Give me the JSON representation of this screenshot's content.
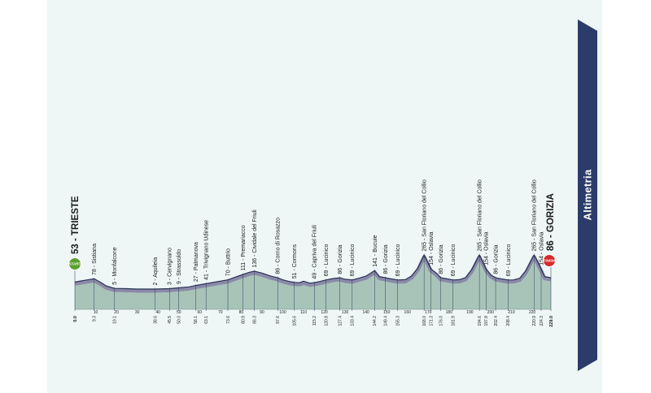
{
  "panel": {
    "title": "Altimetria",
    "start_badge": "START",
    "finish_badge": "FINISH",
    "colors": {
      "background": "#eef6f6",
      "banner": "#2b3c6b",
      "ground_fill": "#a8c3b8",
      "road_band": "#8a8aa8",
      "profile_line": "#2a3355",
      "start_badge": "#5aa02c",
      "finish_badge": "#d62b2b"
    }
  },
  "chart_data": {
    "type": "area",
    "title": "Altimetria",
    "xlabel": "",
    "ylabel": "",
    "xlim": [
      0,
      229.0
    ],
    "ylim": [
      0,
      300
    ],
    "start": {
      "km": "0.0",
      "alt": 53,
      "name": "TRIESTE"
    },
    "finish": {
      "km": "229.0",
      "alt": 86,
      "name": "GORIZIA"
    },
    "x_ticks": [
      10,
      20,
      30,
      40,
      50,
      60,
      70,
      80,
      90,
      100,
      110,
      120,
      130,
      140,
      150,
      160,
      170,
      180,
      190,
      200,
      210,
      220
    ],
    "waypoints": [
      {
        "km": "9.3",
        "alt": 78,
        "name": "Sistiana"
      },
      {
        "km": "19.1",
        "alt": 5,
        "name": "Monfalcone"
      },
      {
        "km": "38.6",
        "alt": 2,
        "name": "Aquileia"
      },
      {
        "km": "45.5",
        "alt": 3,
        "name": "Cervignano"
      },
      {
        "km": "50.0",
        "alt": 9,
        "name": "Strassoldo"
      },
      {
        "km": "58.1",
        "alt": 27,
        "name": "Palmanova"
      },
      {
        "km": "63.1",
        "alt": 41,
        "name": "Trivignano Udinese"
      },
      {
        "km": "73.6",
        "alt": 70,
        "name": "Buttrio"
      },
      {
        "km": "80.9",
        "alt": 111,
        "name": "Premariacco"
      },
      {
        "km": "86.3",
        "alt": 136,
        "name": "Cividale del Friuli"
      },
      {
        "km": "97.6",
        "alt": 86,
        "name": "Corno di Rosazzo"
      },
      {
        "km": "105.6",
        "alt": 51,
        "name": "Cormons"
      },
      {
        "km": "115.2",
        "alt": 49,
        "name": "Capriva del Friuli"
      },
      {
        "km": "120.8",
        "alt": 69,
        "name": "Lucinico"
      },
      {
        "km": "127.4",
        "alt": 86,
        "name": "Gorizia"
      },
      {
        "km": "133.4",
        "alt": 69,
        "name": "Lucinico"
      },
      {
        "km": "144.2",
        "alt": 141,
        "name": "Bucuie"
      },
      {
        "km": "149.4",
        "alt": 86,
        "name": "Gorizia"
      },
      {
        "km": "155.3",
        "alt": 69,
        "name": "Lucinico"
      },
      {
        "km": "168.0",
        "alt": 265,
        "name": "San Floriano del Collio"
      },
      {
        "km": "171.3",
        "alt": 154,
        "name": "Oslavia"
      },
      {
        "km": "176.0",
        "alt": 86,
        "name": "Gorizia"
      },
      {
        "km": "181.9",
        "alt": 69,
        "name": "Lucinico"
      },
      {
        "km": "194.6",
        "alt": 265,
        "name": "San Floriano del Collio"
      },
      {
        "km": "197.8",
        "alt": 154,
        "name": "Oslavia"
      },
      {
        "km": "202.4",
        "alt": 86,
        "name": "Gorizia"
      },
      {
        "km": "208.4",
        "alt": 69,
        "name": "Lucinico"
      },
      {
        "km": "220.9",
        "alt": 265,
        "name": "San Floriano del Collio"
      },
      {
        "km": "224.3",
        "alt": 154,
        "name": "Oslavia"
      }
    ],
    "x": [
      0,
      3,
      6,
      9.3,
      12,
      15,
      19.1,
      25,
      30,
      38.6,
      45.5,
      50,
      55,
      58.1,
      63.1,
      68,
      73.6,
      77,
      80.9,
      84,
      86.3,
      90,
      94,
      97.6,
      100,
      103,
      105.6,
      108,
      110,
      113,
      115.2,
      118,
      120.8,
      124,
      127.4,
      130,
      133.4,
      137,
      140,
      142,
      144.2,
      146.5,
      149.4,
      152,
      155.3,
      159,
      162,
      165,
      168,
      171.3,
      174,
      176,
      179,
      181.9,
      185,
      188,
      191,
      194.6,
      197.8,
      200,
      202.4,
      205,
      208.4,
      211,
      214,
      217,
      220.9,
      224.3,
      226,
      229
    ],
    "y": [
      53,
      62,
      70,
      78,
      55,
      25,
      5,
      3,
      2,
      2,
      3,
      9,
      17,
      27,
      41,
      55,
      70,
      90,
      111,
      128,
      136,
      122,
      100,
      86,
      70,
      58,
      51,
      48,
      60,
      45,
      49,
      58,
      69,
      80,
      86,
      75,
      69,
      85,
      98,
      118,
      141,
      95,
      86,
      78,
      69,
      72,
      100,
      160,
      265,
      154,
      120,
      86,
      78,
      69,
      72,
      88,
      150,
      265,
      154,
      110,
      86,
      78,
      69,
      70,
      82,
      140,
      265,
      154,
      95,
      86
    ]
  }
}
